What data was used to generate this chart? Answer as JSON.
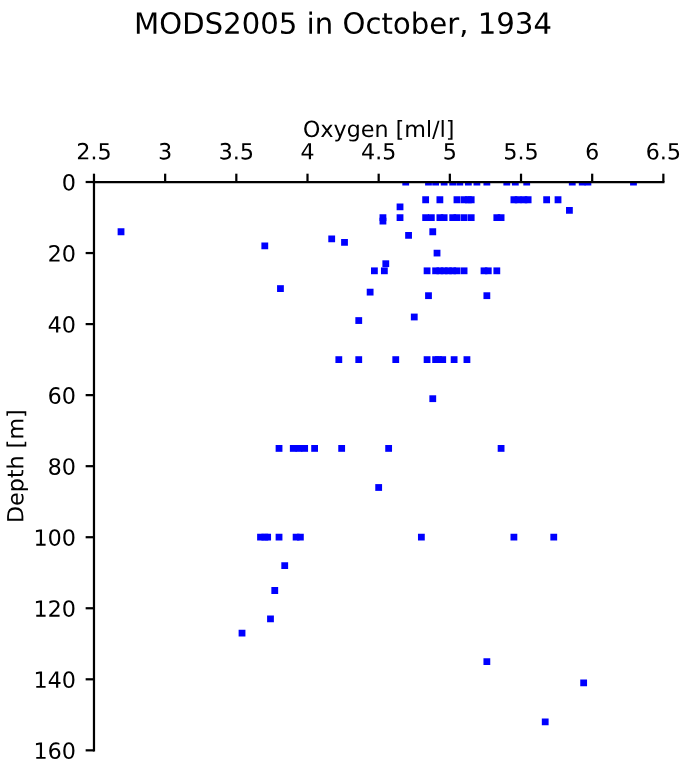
{
  "chart_data": {
    "type": "scatter",
    "title": "MODS2005 in October, 1934",
    "xlabel": "Oxygen [ml/l]",
    "ylabel": "Depth [m]",
    "marker": "square",
    "grid": false,
    "xlim": [
      2.5,
      6.5
    ],
    "xticks": [
      2.5,
      3,
      3.5,
      4,
      4.5,
      5,
      5.5,
      6,
      6.5
    ],
    "ylim": [
      160,
      0
    ],
    "yticks": [
      0,
      20,
      40,
      60,
      80,
      100,
      120,
      140,
      160
    ],
    "series": [
      {
        "color": "#0000ff",
        "x": [
          4.69,
          4.85,
          4.9,
          4.96,
          5.02,
          5.07,
          5.13,
          5.19,
          5.26,
          5.4,
          5.46,
          5.54,
          5.86,
          5.93,
          5.97,
          6.29,
          4.83,
          4.93,
          5.05,
          5.1,
          5.13,
          5.15,
          5.45,
          5.48,
          5.52,
          5.55,
          5.68,
          5.76,
          4.65,
          5.84,
          4.53,
          4.65,
          4.83,
          4.87,
          4.93,
          4.96,
          5.02,
          5.05,
          5.1,
          5.15,
          5.33,
          5.36,
          4.53,
          2.69,
          4.88,
          4.71,
          4.17,
          4.26,
          3.7,
          4.91,
          4.55,
          4.47,
          4.54,
          4.84,
          4.9,
          4.93,
          4.96,
          4.99,
          5.02,
          5.05,
          5.1,
          5.24,
          5.27,
          5.33,
          3.81,
          4.44,
          4.85,
          5.26,
          4.75,
          4.36,
          4.22,
          4.36,
          4.62,
          4.84,
          4.9,
          4.92,
          4.95,
          5.03,
          5.12,
          4.88,
          3.8,
          3.9,
          3.94,
          3.98,
          4.05,
          4.24,
          4.57,
          5.36,
          4.5,
          3.67,
          3.7,
          3.72,
          3.8,
          3.92,
          3.95,
          4.8,
          5.45,
          5.73,
          3.84,
          3.77,
          3.74,
          3.54,
          5.26,
          5.94,
          5.67
        ],
        "values": [
          0,
          0,
          0,
          0,
          0,
          0,
          0,
          0,
          0,
          0,
          0,
          0,
          0,
          0,
          0,
          0,
          5,
          5,
          5,
          5,
          5,
          5,
          5,
          5,
          5,
          5,
          5,
          5,
          7,
          8,
          10,
          10,
          10,
          10,
          10,
          10,
          10,
          10,
          10,
          10,
          10,
          10,
          11,
          14,
          14,
          15,
          16,
          17,
          18,
          20,
          23,
          25,
          25,
          25,
          25,
          25,
          25,
          25,
          25,
          25,
          25,
          25,
          25,
          25,
          30,
          31,
          32,
          32,
          38,
          39,
          50,
          50,
          50,
          50,
          50,
          50,
          50,
          50,
          50,
          61,
          75,
          75,
          75,
          75,
          75,
          75,
          75,
          75,
          86,
          100,
          100,
          100,
          100,
          100,
          100,
          100,
          100,
          100,
          108,
          115,
          123,
          127,
          135,
          141,
          152
        ]
      }
    ]
  }
}
